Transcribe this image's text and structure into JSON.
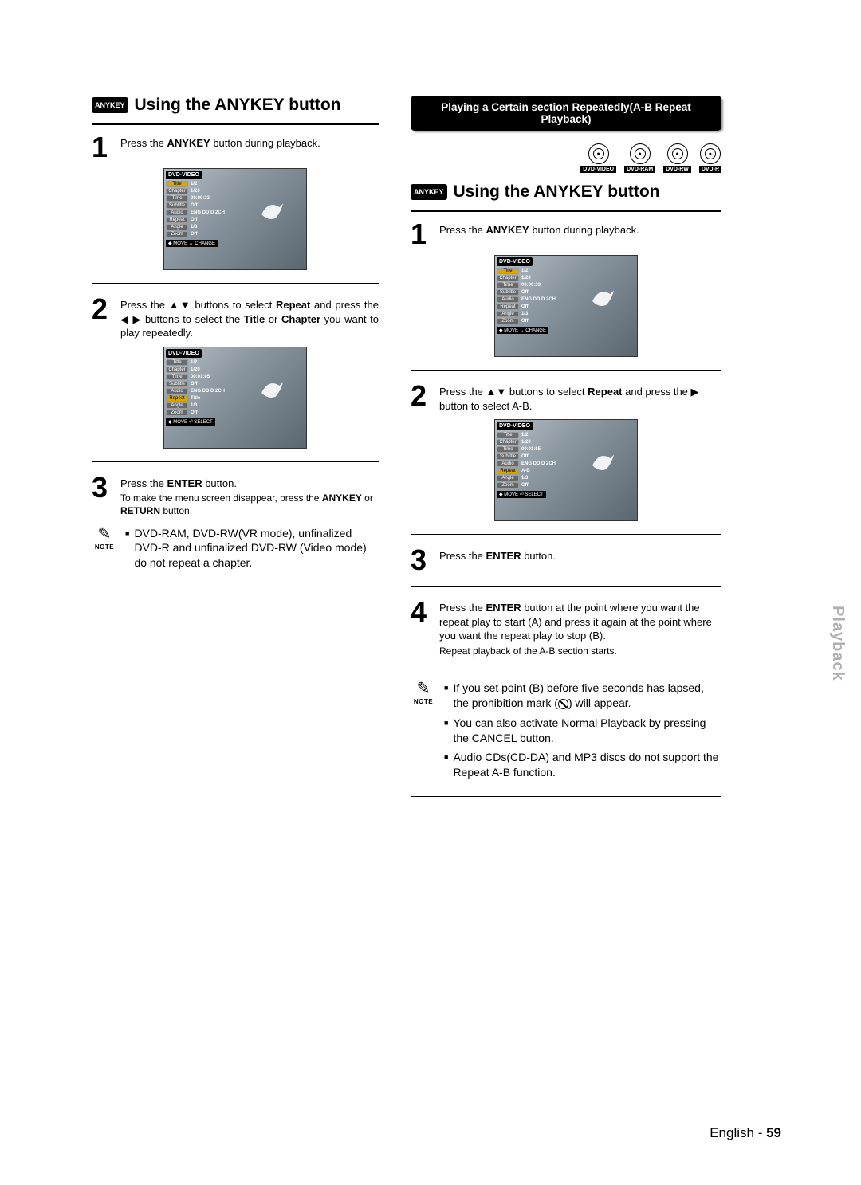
{
  "left": {
    "badge": "ANYKEY",
    "title": "Using the ANYKEY button",
    "step1": {
      "num": "1",
      "text_a": "Press the ",
      "text_b": "ANYKEY",
      "text_c": " button during playback."
    },
    "osd1": {
      "header": "DVD-VIDEO",
      "rows": [
        {
          "label": "Title",
          "val": "1/2",
          "hl": true
        },
        {
          "label": "Chapter",
          "val": "1/20"
        },
        {
          "label": "Time",
          "val": "00:00:33"
        },
        {
          "label": "Subtitle",
          "val": "Off"
        },
        {
          "label": "Audio",
          "val": "ENG DD D 2CH"
        },
        {
          "label": "Repeat",
          "val": "Off"
        },
        {
          "label": "Angle",
          "val": "1/3"
        },
        {
          "label": "Zoom",
          "val": "Off"
        }
      ],
      "footer": "◆ MOVE    ↔ CHANGE"
    },
    "step2": {
      "num": "2",
      "line1_a": "Press the ▲▼ buttons to select ",
      "line1_b": "Repeat",
      "line1_c": " and press the ◀ ▶ buttons to select the ",
      "line1_d": "Title",
      "line1_e": " or ",
      "line1_f": "Chapter",
      "line1_g": " you want to play repeatedly."
    },
    "osd2": {
      "header": "DVD-VIDEO",
      "rows": [
        {
          "label": "Title",
          "val": "1/2"
        },
        {
          "label": "Chapter",
          "val": "1/20"
        },
        {
          "label": "Time",
          "val": "00:01:05"
        },
        {
          "label": "Subtitle",
          "val": "Off"
        },
        {
          "label": "Audio",
          "val": "ENG DD D 2CH"
        },
        {
          "label": "Repeat",
          "val": "Title",
          "hl": true
        },
        {
          "label": "Angle",
          "val": "1/3"
        },
        {
          "label": "Zoom",
          "val": "Off"
        }
      ],
      "footer": "◆ MOVE    ⏎ SELECT"
    },
    "step3": {
      "num": "3",
      "line1_a": "Press the ",
      "line1_b": "ENTER",
      "line1_c": " button.",
      "line2_a": "To make the menu screen disappear, press the ",
      "line2_b": "ANYKEY",
      "line2_c": " or ",
      "line2_d": "RETURN",
      "line2_e": " button."
    },
    "note": {
      "label": "NOTE",
      "item1": "DVD-RAM, DVD-RW(VR mode), unfinalized DVD-R and unfinalized DVD-RW (Video mode) do not repeat a chapter."
    }
  },
  "right": {
    "banner": "Playing a Certain section Repeatedly(A-B Repeat Playback)",
    "discs": [
      {
        "label": "DVD-VIDEO"
      },
      {
        "label": "DVD-RAM"
      },
      {
        "label": "DVD-RW"
      },
      {
        "label": "DVD-R"
      }
    ],
    "badge": "ANYKEY",
    "title": "Using the ANYKEY button",
    "step1": {
      "num": "1",
      "text_a": "Press the ",
      "text_b": "ANYKEY",
      "text_c": " button during playback."
    },
    "osd1": {
      "header": "DVD-VIDEO",
      "rows": [
        {
          "label": "Title",
          "val": "1/2",
          "hl": true
        },
        {
          "label": "Chapter",
          "val": "1/20"
        },
        {
          "label": "Time",
          "val": "00:00:33"
        },
        {
          "label": "Subtitle",
          "val": "Off"
        },
        {
          "label": "Audio",
          "val": "ENG DD D 2CH"
        },
        {
          "label": "Repeat",
          "val": "Off"
        },
        {
          "label": "Angle",
          "val": "1/3"
        },
        {
          "label": "Zoom",
          "val": "Off"
        }
      ],
      "footer": "◆ MOVE    ↔ CHANGE"
    },
    "step2": {
      "num": "2",
      "line1_a": "Press the ▲▼ buttons to select ",
      "line1_b": "Repeat",
      "line1_c": " and press the ▶ button to select A-B."
    },
    "osd2": {
      "header": "DVD-VIDEO",
      "rows": [
        {
          "label": "Title",
          "val": "1/2"
        },
        {
          "label": "Chapter",
          "val": "1/20"
        },
        {
          "label": "Time",
          "val": "00:01:05"
        },
        {
          "label": "Subtitle",
          "val": "Off"
        },
        {
          "label": "Audio",
          "val": "ENG DD D 2CH"
        },
        {
          "label": "Repeat",
          "val": "A-B",
          "hl": true
        },
        {
          "label": "Angle",
          "val": "1/3"
        },
        {
          "label": "Zoom",
          "val": "Off"
        }
      ],
      "footer": "◆ MOVE    ⏎ SELECT"
    },
    "step3": {
      "num": "3",
      "text_a": "Press the ",
      "text_b": "ENTER",
      "text_c": " button."
    },
    "step4": {
      "num": "4",
      "line1_a": "Press the ",
      "line1_b": "ENTER",
      "line1_c": " button at the point where you want the repeat play to start (A) and press it again at the point where you want the repeat play to stop (B).",
      "line2": "Repeat playback of the A-B section starts."
    },
    "note": {
      "label": "NOTE",
      "item1_a": "If you set point (B) before five seconds has lapsed, the prohibition mark (",
      "item1_b": ") will appear.",
      "item2": "You can also activate Normal Playback by pressing the CANCEL button.",
      "item3": "Audio CDs(CD-DA) and MP3 discs do not support the Repeat A-B function."
    }
  },
  "sidetab": "Playback",
  "footer": {
    "lang": "English",
    "sep": " - ",
    "page": "59"
  }
}
